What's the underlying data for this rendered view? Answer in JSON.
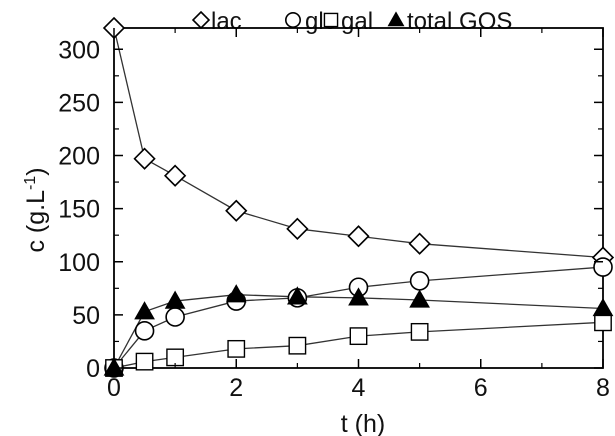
{
  "chart_data": {
    "type": "line",
    "title": "",
    "xlabel": "t (h)",
    "ylabel_main": "c (g.L",
    "ylabel_sup": "-1",
    "ylabel_close": ")",
    "xlim": [
      0,
      8
    ],
    "ylim": [
      0,
      320
    ],
    "xticks": [
      0,
      2,
      4,
      6,
      8
    ],
    "yticks": [
      0,
      50,
      100,
      150,
      200,
      250,
      300
    ],
    "grid": false,
    "legend_position": "top",
    "series": [
      {
        "name": "lac",
        "marker": "diamond",
        "x": [
          0,
          0.5,
          1,
          2,
          3,
          4,
          5,
          8
        ],
        "values": [
          320,
          197,
          181,
          148,
          131,
          124,
          117,
          104
        ]
      },
      {
        "name": "glc",
        "marker": "circle",
        "x": [
          0,
          0.5,
          1,
          2,
          3,
          4,
          5,
          8
        ],
        "values": [
          0,
          35,
          48,
          63,
          66,
          76,
          82,
          95
        ]
      },
      {
        "name": "gal",
        "marker": "square",
        "x": [
          0,
          0.5,
          1,
          2,
          3,
          4,
          5,
          8
        ],
        "values": [
          0,
          6,
          10,
          18,
          21,
          30,
          34,
          43
        ]
      },
      {
        "name": "total GOS",
        "marker": "triangle",
        "x": [
          0,
          0.5,
          1,
          2,
          3,
          4,
          5,
          8
        ],
        "values": [
          0,
          53,
          63,
          69,
          67,
          66,
          64,
          56
        ]
      }
    ],
    "colors": {
      "line": "#333333",
      "axis": "#000000",
      "marker_fill_open": "#ffffff",
      "marker_fill_solid": "#000000"
    }
  }
}
